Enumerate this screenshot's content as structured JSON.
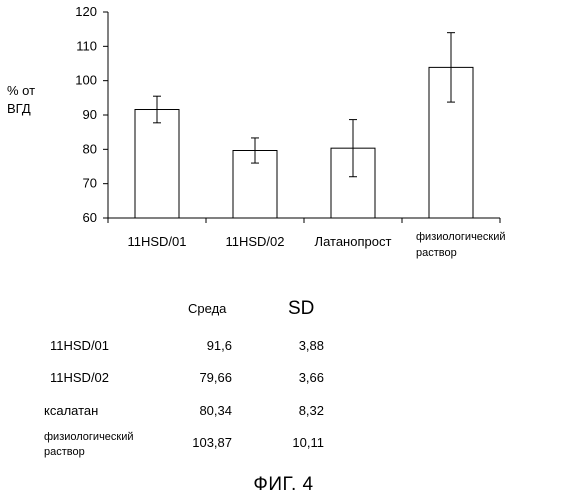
{
  "chart_data": {
    "type": "bar",
    "categories": [
      "11HSD/01",
      "11HSD/02",
      "Латанопрост",
      "физиологический раствор"
    ],
    "category_lines": [
      [
        "11HSD/01"
      ],
      [
        "11HSD/02"
      ],
      [
        "Латанопрост"
      ],
      [
        "физиологический",
        "раствор"
      ]
    ],
    "values": [
      91.6,
      79.66,
      80.34,
      103.87
    ],
    "errors": [
      3.88,
      3.66,
      8.32,
      10.11
    ],
    "ylabel_lines": [
      "% от",
      "ВГД"
    ],
    "ylim": [
      60,
      120
    ],
    "yticks": [
      60,
      70,
      80,
      90,
      100,
      110,
      120
    ],
    "grid": false,
    "bar_color": "#ffffff",
    "stroke_color": "#000000"
  },
  "table": {
    "headers": [
      "Среда",
      "SD"
    ],
    "rows": [
      {
        "label": [
          "11HSD/01"
        ],
        "mean": "91,6",
        "sd": "3,88"
      },
      {
        "label": [
          "11HSD/02"
        ],
        "mean": "79,66",
        "sd": "3,66"
      },
      {
        "label": [
          "ксалатан"
        ],
        "mean": "80,34",
        "sd": "8,32"
      },
      {
        "label": [
          "физиологический",
          "раствор"
        ],
        "mean": "103,87",
        "sd": "10,11"
      }
    ]
  },
  "caption": "ФИГ. 4"
}
